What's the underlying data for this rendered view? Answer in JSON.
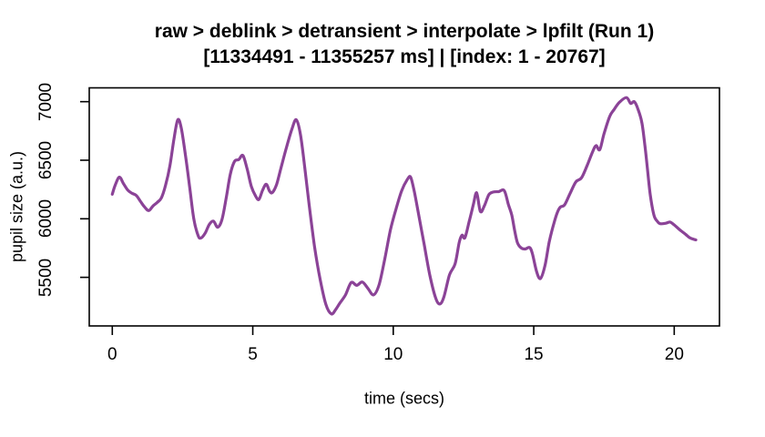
{
  "page": {
    "background_color": "#ffffff"
  },
  "chart_data": {
    "type": "line",
    "title": "raw > deblink > detransient > interpolate > lpfilt (Run 1)",
    "subtitle": "[11334491 - 11355257 ms] | [index: 1 - 20767]",
    "xlabel": "time (secs)",
    "ylabel": "pupil size (a.u.)",
    "x_ticks": [
      0,
      5,
      10,
      15,
      20
    ],
    "y_ticks": [
      5500,
      6000,
      6500,
      7000
    ],
    "xlim": [
      -0.82,
      21.61
    ],
    "ylim": [
      5085,
      7118
    ],
    "grid": false,
    "legend_position": "none",
    "line_color": "#8B4397",
    "line_width": 3.2,
    "axis_color": "#000000",
    "series": [
      {
        "name": "pupil size (a.u.)",
        "points": [
          [
            0.0,
            6210
          ],
          [
            0.1,
            6285
          ],
          [
            0.25,
            6355
          ],
          [
            0.4,
            6300
          ],
          [
            0.55,
            6245
          ],
          [
            0.7,
            6218
          ],
          [
            0.85,
            6200
          ],
          [
            1.0,
            6150
          ],
          [
            1.15,
            6100
          ],
          [
            1.3,
            6070
          ],
          [
            1.45,
            6110
          ],
          [
            1.6,
            6140
          ],
          [
            1.75,
            6180
          ],
          [
            1.9,
            6290
          ],
          [
            2.05,
            6450
          ],
          [
            2.2,
            6690
          ],
          [
            2.33,
            6845
          ],
          [
            2.45,
            6780
          ],
          [
            2.6,
            6550
          ],
          [
            2.75,
            6280
          ],
          [
            2.9,
            6000
          ],
          [
            3.05,
            5860
          ],
          [
            3.15,
            5835
          ],
          [
            3.3,
            5875
          ],
          [
            3.45,
            5950
          ],
          [
            3.6,
            5980
          ],
          [
            3.75,
            5928
          ],
          [
            3.9,
            5990
          ],
          [
            4.05,
            6170
          ],
          [
            4.2,
            6380
          ],
          [
            4.35,
            6490
          ],
          [
            4.5,
            6505
          ],
          [
            4.65,
            6540
          ],
          [
            4.8,
            6425
          ],
          [
            4.95,
            6275
          ],
          [
            5.1,
            6195
          ],
          [
            5.22,
            6165
          ],
          [
            5.35,
            6245
          ],
          [
            5.48,
            6295
          ],
          [
            5.6,
            6235
          ],
          [
            5.7,
            6225
          ],
          [
            5.85,
            6295
          ],
          [
            6.0,
            6430
          ],
          [
            6.2,
            6610
          ],
          [
            6.4,
            6770
          ],
          [
            6.55,
            6845
          ],
          [
            6.7,
            6715
          ],
          [
            6.85,
            6440
          ],
          [
            7.0,
            6130
          ],
          [
            7.2,
            5760
          ],
          [
            7.4,
            5480
          ],
          [
            7.6,
            5270
          ],
          [
            7.8,
            5188
          ],
          [
            7.95,
            5225
          ],
          [
            8.1,
            5280
          ],
          [
            8.3,
            5350
          ],
          [
            8.5,
            5455
          ],
          [
            8.7,
            5432
          ],
          [
            8.9,
            5460
          ],
          [
            9.1,
            5405
          ],
          [
            9.3,
            5350
          ],
          [
            9.5,
            5440
          ],
          [
            9.7,
            5660
          ],
          [
            9.9,
            5905
          ],
          [
            10.1,
            6085
          ],
          [
            10.3,
            6240
          ],
          [
            10.5,
            6335
          ],
          [
            10.62,
            6355
          ],
          [
            10.75,
            6230
          ],
          [
            10.9,
            6040
          ],
          [
            11.1,
            5780
          ],
          [
            11.3,
            5520
          ],
          [
            11.5,
            5330
          ],
          [
            11.65,
            5272
          ],
          [
            11.8,
            5330
          ],
          [
            12.0,
            5520
          ],
          [
            12.2,
            5615
          ],
          [
            12.35,
            5800
          ],
          [
            12.45,
            5860
          ],
          [
            12.55,
            5838
          ],
          [
            12.7,
            5975
          ],
          [
            12.85,
            6120
          ],
          [
            12.97,
            6222
          ],
          [
            13.1,
            6062
          ],
          [
            13.25,
            6115
          ],
          [
            13.4,
            6205
          ],
          [
            13.55,
            6228
          ],
          [
            13.75,
            6232
          ],
          [
            13.95,
            6240
          ],
          [
            14.1,
            6120
          ],
          [
            14.22,
            6030
          ],
          [
            14.32,
            5900
          ],
          [
            14.42,
            5795
          ],
          [
            14.55,
            5752
          ],
          [
            14.7,
            5742
          ],
          [
            14.85,
            5755
          ],
          [
            14.95,
            5705
          ],
          [
            15.1,
            5550
          ],
          [
            15.24,
            5490
          ],
          [
            15.4,
            5600
          ],
          [
            15.55,
            5800
          ],
          [
            15.72,
            5963
          ],
          [
            15.85,
            6060
          ],
          [
            15.95,
            6100
          ],
          [
            16.1,
            6120
          ],
          [
            16.3,
            6220
          ],
          [
            16.5,
            6315
          ],
          [
            16.7,
            6350
          ],
          [
            16.9,
            6455
          ],
          [
            17.1,
            6575
          ],
          [
            17.22,
            6625
          ],
          [
            17.35,
            6590
          ],
          [
            17.5,
            6725
          ],
          [
            17.7,
            6872
          ],
          [
            17.85,
            6930
          ],
          [
            18.05,
            6995
          ],
          [
            18.3,
            7035
          ],
          [
            18.45,
            6985
          ],
          [
            18.58,
            7000
          ],
          [
            18.72,
            6930
          ],
          [
            18.85,
            6820
          ],
          [
            18.95,
            6640
          ],
          [
            19.05,
            6420
          ],
          [
            19.15,
            6200
          ],
          [
            19.28,
            6030
          ],
          [
            19.4,
            5978
          ],
          [
            19.5,
            5958
          ],
          [
            19.7,
            5962
          ],
          [
            19.85,
            5972
          ],
          [
            20.0,
            5948
          ],
          [
            20.2,
            5905
          ],
          [
            20.4,
            5868
          ],
          [
            20.55,
            5838
          ],
          [
            20.7,
            5824
          ],
          [
            20.77,
            5820
          ]
        ]
      }
    ]
  }
}
